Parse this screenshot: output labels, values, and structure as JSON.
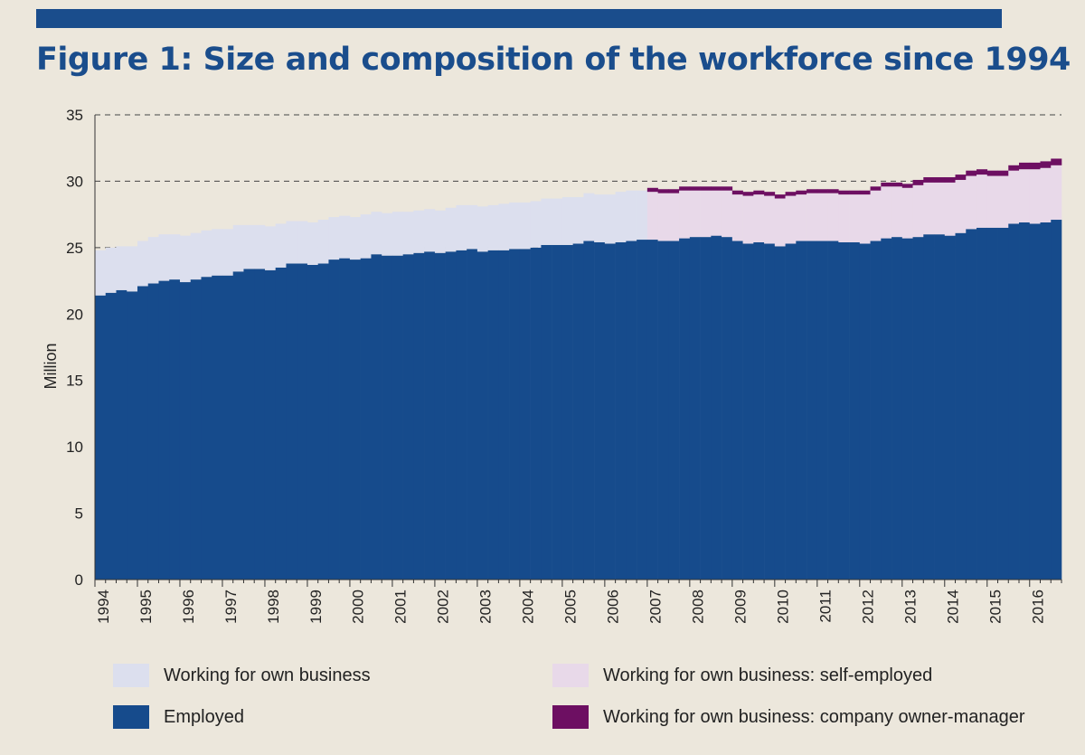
{
  "title": "Figure 1: Size and composition of the workforce since 1994",
  "colors": {
    "background": "#ece7dc",
    "accent": "#1a4d8c",
    "employed": "#164b8c",
    "own_business": "#dcdfee",
    "self_employed": "#e8d9e9",
    "owner_manager": "#6d0f62"
  },
  "legend": [
    {
      "key": "own_business",
      "label": "Working for own business"
    },
    {
      "key": "employed",
      "label": "Employed"
    },
    {
      "key": "self_employed",
      "label": "Working for own business: self-employed"
    },
    {
      "key": "owner_manager",
      "label": "Working for own business: company owner-manager"
    }
  ],
  "chart_data": {
    "type": "bar",
    "stacked": true,
    "frequency": "quarterly",
    "ylabel": "Million",
    "ylim": [
      0,
      35
    ],
    "yticks": [
      0,
      5,
      10,
      15,
      20,
      25,
      30,
      35
    ],
    "grid": "dashed horizontal at 25, 30, 35",
    "x_tick_labels": [
      "1994",
      "1995",
      "1996",
      "1997",
      "1998",
      "1999",
      "2000",
      "2001",
      "2002",
      "2003",
      "2004",
      "2005",
      "2006",
      "2007",
      "2008",
      "2009",
      "2010",
      "2011",
      "2012",
      "2013",
      "2014",
      "2015",
      "2016"
    ],
    "employed": [
      21.4,
      21.6,
      21.8,
      21.7,
      22.1,
      22.3,
      22.5,
      22.6,
      22.4,
      22.6,
      22.8,
      22.9,
      22.9,
      23.2,
      23.4,
      23.4,
      23.3,
      23.5,
      23.8,
      23.8,
      23.7,
      23.8,
      24.1,
      24.2,
      24.1,
      24.2,
      24.5,
      24.4,
      24.4,
      24.5,
      24.6,
      24.7,
      24.6,
      24.7,
      24.8,
      24.9,
      24.7,
      24.8,
      24.8,
      24.9,
      24.9,
      25.0,
      25.2,
      25.2,
      25.2,
      25.3,
      25.5,
      25.4,
      25.3,
      25.4,
      25.5,
      25.6,
      25.6,
      25.5,
      25.5,
      25.7,
      25.8,
      25.8,
      25.9,
      25.8,
      25.5,
      25.3,
      25.4,
      25.3,
      25.1,
      25.3,
      25.5,
      25.5,
      25.5,
      25.5,
      25.4,
      25.4,
      25.3,
      25.5,
      25.7,
      25.8,
      25.7,
      25.8,
      26.0,
      26.0,
      25.9,
      26.1,
      26.4,
      26.5,
      26.5,
      26.5,
      26.8,
      26.9,
      26.8,
      26.9,
      27.1
    ],
    "own_business": [
      3.4,
      3.4,
      3.3,
      3.4,
      3.4,
      3.5,
      3.5,
      3.4,
      3.5,
      3.5,
      3.5,
      3.5,
      3.5,
      3.5,
      3.3,
      3.3,
      3.3,
      3.3,
      3.2,
      3.2,
      3.2,
      3.3,
      3.2,
      3.2,
      3.2,
      3.3,
      3.2,
      3.2,
      3.3,
      3.2,
      3.2,
      3.2,
      3.2,
      3.3,
      3.4,
      3.3,
      3.4,
      3.4,
      3.5,
      3.5,
      3.5,
      3.5,
      3.5,
      3.5,
      3.6,
      3.5,
      3.6,
      3.6,
      3.7,
      3.8,
      3.8,
      3.7
    ],
    "self_employed": [
      3.6,
      3.6,
      3.6,
      3.6,
      3.5,
      3.5,
      3.4,
      3.5,
      3.5,
      3.6,
      3.6,
      3.6,
      3.6,
      3.6,
      3.5,
      3.6,
      3.6,
      3.6,
      3.6,
      3.6,
      3.7,
      3.8,
      3.9,
      3.8,
      3.8,
      3.9,
      3.9,
      3.9,
      4.0,
      4.0,
      4.0,
      4.0,
      3.9,
      3.9,
      4.0,
      4.0,
      4.1,
      4.1,
      4.1
    ],
    "owner_manager": [
      0.3,
      0.3,
      0.3,
      0.3,
      0.3,
      0.3,
      0.3,
      0.3,
      0.3,
      0.3,
      0.3,
      0.3,
      0.3,
      0.3,
      0.3,
      0.3,
      0.3,
      0.3,
      0.3,
      0.3,
      0.3,
      0.3,
      0.3,
      0.3,
      0.3,
      0.4,
      0.4,
      0.4,
      0.4,
      0.4,
      0.4,
      0.4,
      0.4,
      0.4,
      0.4,
      0.5,
      0.5,
      0.5,
      0.5
    ]
  }
}
